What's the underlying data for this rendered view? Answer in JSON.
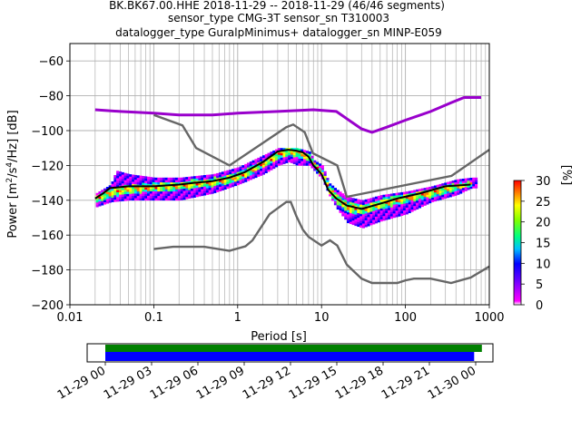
{
  "chart_data": {
    "type": "heatmap",
    "title_lines": [
      "BK.BK67.00.HHE   2018-11-29 -- 2018-11-29  (46/46 segments)",
      "sensor_type CMG-3T sensor_sn T310003",
      "datalogger_type GuralpMinimus+ datalogger_sn MINP-E059"
    ],
    "xlabel": "Period [s]",
    "ylabel_parts": [
      "Power [m",
      "2",
      "/s",
      "4",
      "/Hz] [dB]"
    ],
    "x_scale": "log",
    "xlim": [
      0.01,
      1000
    ],
    "ylim": [
      -200,
      -50
    ],
    "x_ticks": [
      {
        "v": 0.01,
        "label": "0.01"
      },
      {
        "v": 0.1,
        "label": "0.1"
      },
      {
        "v": 1,
        "label": "1"
      },
      {
        "v": 10,
        "label": "10"
      },
      {
        "v": 100,
        "label": "100"
      },
      {
        "v": 1000,
        "label": "1000"
      }
    ],
    "y_ticks": [
      {
        "v": -200,
        "label": "−200"
      },
      {
        "v": -180,
        "label": "−180"
      },
      {
        "v": -160,
        "label": "−160"
      },
      {
        "v": -140,
        "label": "−140"
      },
      {
        "v": -120,
        "label": "−120"
      },
      {
        "v": -100,
        "label": "−100"
      },
      {
        "v": -80,
        "label": "−80"
      },
      {
        "v": -60,
        "label": "−60"
      }
    ],
    "grid": true,
    "colorbar": {
      "label": "[%]",
      "range": [
        0,
        30
      ],
      "ticks": [
        {
          "v": 0,
          "label": "0"
        },
        {
          "v": 5,
          "label": "5"
        },
        {
          "v": 10,
          "label": "10"
        },
        {
          "v": 15,
          "label": "15"
        },
        {
          "v": 20,
          "label": "20"
        },
        {
          "v": 25,
          "label": "25"
        },
        {
          "v": 30,
          "label": "30"
        }
      ]
    },
    "nhnm": [
      [
        0.1,
        -91
      ],
      [
        0.22,
        -97
      ],
      [
        0.32,
        -110
      ],
      [
        0.8,
        -120
      ],
      [
        3.8,
        -98
      ],
      [
        4.6,
        -96.5
      ],
      [
        6.3,
        -101
      ],
      [
        7.9,
        -113
      ],
      [
        15.4,
        -120
      ],
      [
        20,
        -138
      ],
      [
        354.8,
        -126
      ],
      [
        1000,
        -111
      ]
    ],
    "nlnm": [
      [
        0.1,
        -168
      ],
      [
        0.17,
        -166.7
      ],
      [
        0.4,
        -166.7
      ],
      [
        0.8,
        -169
      ],
      [
        1.24,
        -166.4
      ],
      [
        1.5,
        -163
      ],
      [
        2.4,
        -148
      ],
      [
        3.8,
        -141
      ],
      [
        4.3,
        -141
      ],
      [
        5,
        -149
      ],
      [
        6,
        -157
      ],
      [
        7,
        -161
      ],
      [
        10,
        -166
      ],
      [
        12.6,
        -163
      ],
      [
        15.4,
        -166
      ],
      [
        20,
        -177
      ],
      [
        30,
        -185
      ],
      [
        40,
        -187.5
      ],
      [
        80,
        -187.5
      ],
      [
        100,
        -186
      ],
      [
        126,
        -185
      ],
      [
        200,
        -185
      ],
      [
        350,
        -187.5
      ],
      [
        600,
        -184.4
      ],
      [
        1000,
        -178
      ]
    ],
    "mode": [
      [
        0.02,
        -139
      ],
      [
        0.025,
        -136
      ],
      [
        0.03,
        -133
      ],
      [
        0.05,
        -132
      ],
      [
        0.1,
        -132
      ],
      [
        0.2,
        -131
      ],
      [
        0.3,
        -130
      ],
      [
        0.5,
        -129
      ],
      [
        0.8,
        -127
      ],
      [
        1.2,
        -124
      ],
      [
        2,
        -118
      ],
      [
        3,
        -112
      ],
      [
        4,
        -111
      ],
      [
        5,
        -111.5
      ],
      [
        6,
        -112.5
      ],
      [
        7,
        -115
      ],
      [
        8,
        -120
      ],
      [
        10,
        -125
      ],
      [
        12,
        -134
      ],
      [
        15,
        -139
      ],
      [
        20,
        -143
      ],
      [
        30,
        -145
      ],
      [
        50,
        -142
      ],
      [
        80,
        -139
      ],
      [
        150,
        -136
      ],
      [
        300,
        -132
      ],
      [
        600,
        -131
      ]
    ],
    "upper_band": [
      [
        0.02,
        -88
      ],
      [
        0.04,
        -89
      ],
      [
        0.1,
        -90
      ],
      [
        0.2,
        -91
      ],
      [
        0.5,
        -91
      ],
      [
        1,
        -90
      ],
      [
        3,
        -89
      ],
      [
        8,
        -88
      ],
      [
        15,
        -89
      ],
      [
        30,
        -99
      ],
      [
        40,
        -101
      ],
      [
        60,
        -98
      ],
      [
        100,
        -94
      ],
      [
        200,
        -89
      ],
      [
        350,
        -84
      ],
      [
        500,
        -81
      ],
      [
        800,
        -81
      ]
    ],
    "density_upper": [
      [
        0.02,
        -136
      ],
      [
        0.03,
        -131
      ],
      [
        0.035,
        -123
      ],
      [
        0.05,
        -125
      ],
      [
        0.1,
        -127
      ],
      [
        0.2,
        -127
      ],
      [
        0.5,
        -125
      ],
      [
        1,
        -121
      ],
      [
        2,
        -114
      ],
      [
        3,
        -110
      ],
      [
        4,
        -110
      ],
      [
        5,
        -110
      ],
      [
        7,
        -112
      ],
      [
        8,
        -117
      ],
      [
        10,
        -120
      ],
      [
        12,
        -130
      ],
      [
        15,
        -134
      ],
      [
        20,
        -138
      ],
      [
        30,
        -140
      ],
      [
        50,
        -137
      ],
      [
        100,
        -135
      ],
      [
        200,
        -132
      ],
      [
        400,
        -128
      ],
      [
        600,
        -127
      ],
      [
        700,
        -127
      ]
    ],
    "density_lower": [
      [
        0.02,
        -144
      ],
      [
        0.03,
        -141
      ],
      [
        0.05,
        -140
      ],
      [
        0.1,
        -140
      ],
      [
        0.2,
        -140
      ],
      [
        0.5,
        -136
      ],
      [
        1,
        -131
      ],
      [
        2,
        -125
      ],
      [
        3,
        -120
      ],
      [
        4,
        -118
      ],
      [
        5,
        -120
      ],
      [
        7,
        -120
      ],
      [
        8,
        -123
      ],
      [
        10,
        -128
      ],
      [
        12,
        -137
      ],
      [
        15,
        -145
      ],
      [
        20,
        -153
      ],
      [
        30,
        -156
      ],
      [
        50,
        -152
      ],
      [
        100,
        -148
      ],
      [
        200,
        -141
      ],
      [
        400,
        -137
      ],
      [
        600,
        -133
      ],
      [
        700,
        -133
      ]
    ],
    "core_upper": [
      [
        0.02,
        -137
      ],
      [
        0.03,
        -133
      ],
      [
        0.05,
        -131
      ],
      [
        0.1,
        -130
      ],
      [
        0.2,
        -129
      ],
      [
        0.5,
        -127
      ],
      [
        1,
        -124
      ],
      [
        2,
        -117
      ],
      [
        3,
        -111
      ],
      [
        4,
        -110
      ],
      [
        5,
        -110.5
      ],
      [
        7,
        -113
      ],
      [
        8,
        -118
      ],
      [
        10,
        -123
      ],
      [
        12,
        -131
      ],
      [
        15,
        -137
      ],
      [
        20,
        -141
      ],
      [
        30,
        -142
      ],
      [
        50,
        -139
      ],
      [
        100,
        -136
      ],
      [
        200,
        -133
      ],
      [
        400,
        -130
      ],
      [
        600,
        -129
      ]
    ],
    "core_lower": [
      [
        0.02,
        -141
      ],
      [
        0.03,
        -138
      ],
      [
        0.05,
        -136
      ],
      [
        0.1,
        -135
      ],
      [
        0.2,
        -134
      ],
      [
        0.5,
        -132
      ],
      [
        1,
        -129
      ],
      [
        2,
        -121
      ],
      [
        3,
        -116
      ],
      [
        4,
        -114
      ],
      [
        5,
        -115
      ],
      [
        7,
        -117
      ],
      [
        8,
        -121
      ],
      [
        10,
        -127
      ],
      [
        12,
        -136
      ],
      [
        15,
        -142
      ],
      [
        20,
        -147
      ],
      [
        30,
        -148
      ],
      [
        50,
        -145
      ],
      [
        100,
        -141
      ],
      [
        200,
        -138
      ],
      [
        400,
        -134
      ],
      [
        600,
        -132
      ]
    ]
  },
  "timeline": {
    "tick_labels": [
      "11-29 00",
      "11-29 03",
      "11-29 06",
      "11-29 09",
      "11-29 12",
      "11-29 15",
      "11-29 18",
      "11-29 21",
      "11-30 00"
    ],
    "green_bar_hours": [
      0,
      24.4
    ],
    "blue_bar_hours": [
      0,
      23.9
    ]
  },
  "colors": {
    "nm_line": "#666666",
    "mode_line": "#000000",
    "grid": "#b0b0b0",
    "timeline_green": "#008000",
    "timeline_blue": "#0000ff"
  }
}
